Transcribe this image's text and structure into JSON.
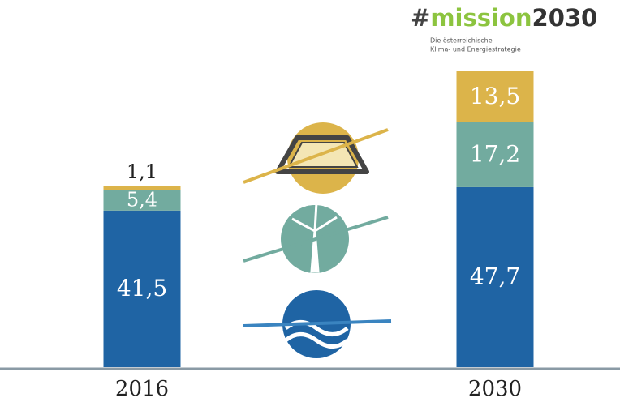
{
  "chart_data": {
    "type": "stacked_bar",
    "logo": [
      "#",
      "mission",
      "2030"
    ],
    "logo_subtitle": [
      "Die österreichische",
      "Klima- und Energiestrategie"
    ],
    "categories": [
      "2016",
      "2030"
    ],
    "series": [
      {
        "color": "#1f64a4",
        "values": [
          41.5,
          47.7
        ],
        "value_labels": [
          "41,5",
          "47,7"
        ]
      },
      {
        "color": "#72ab9f",
        "values": [
          5.4,
          17.2
        ],
        "value_labels": [
          "5,4",
          "17,2"
        ]
      },
      {
        "color": "#dcb44a",
        "values": [
          1.1,
          13.5
        ],
        "value_labels": [
          "1,1",
          "13,5"
        ]
      }
    ]
  }
}
